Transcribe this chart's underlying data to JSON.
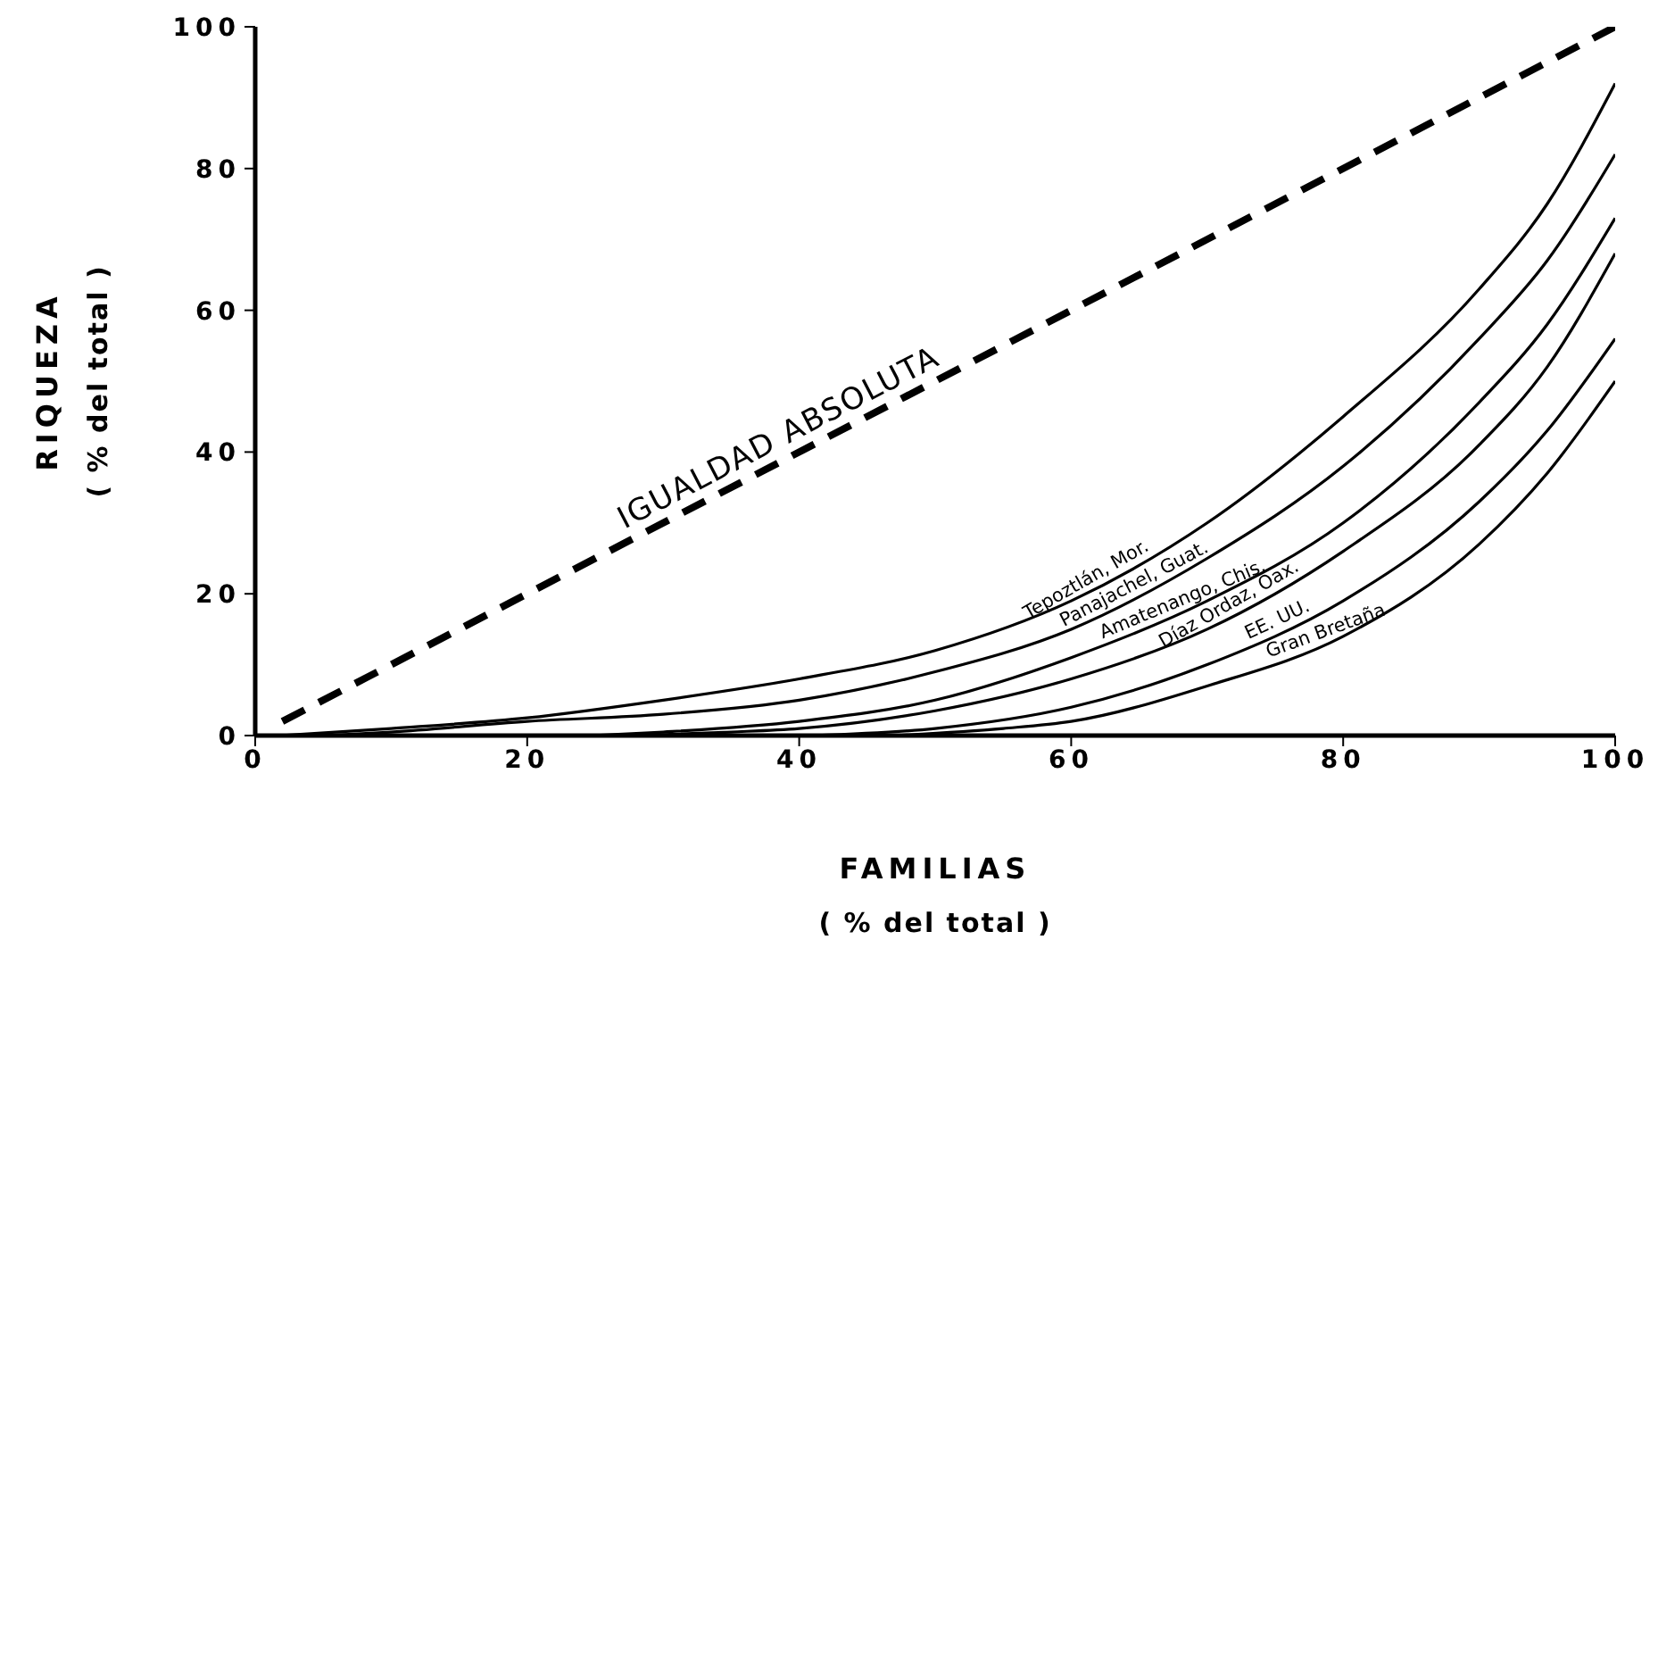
{
  "chart_data": {
    "type": "line",
    "xlabel": "FAMILIAS\n( % del total )",
    "ylabel": "RIQUEZA\n( % del total )",
    "xlim": [
      0,
      100
    ],
    "ylim": [
      0,
      100
    ],
    "xticks": [
      0,
      20,
      40,
      60,
      80,
      100
    ],
    "yticks": [
      0,
      20,
      40,
      60,
      80,
      100
    ],
    "grid": false,
    "legend": false,
    "marker": "none",
    "series": [
      {
        "name": "IGUALDAD ABSOLUTA",
        "color": "#000000",
        "line_style": "dashed",
        "x": [
          2,
          100
        ],
        "values": [
          2,
          100
        ]
      },
      {
        "name": "Tepoztlán, Mor.",
        "color": "#000000",
        "line_style": "solid",
        "x": [
          2,
          10,
          20,
          30,
          40,
          50,
          60,
          70,
          80,
          90,
          95,
          100
        ],
        "values": [
          0,
          1,
          2.5,
          5,
          8,
          12,
          19,
          30,
          45,
          63,
          75,
          92
        ]
      },
      {
        "name": "Panajachel, Guat.",
        "color": "#000000",
        "line_style": "solid",
        "x": [
          5,
          10,
          20,
          30,
          40,
          50,
          60,
          70,
          80,
          90,
          95,
          100
        ],
        "values": [
          0,
          0.5,
          2,
          3,
          5,
          9,
          15,
          25,
          38,
          56,
          67,
          82
        ]
      },
      {
        "name": "Amatenango, Chis.",
        "color": "#000000",
        "line_style": "solid",
        "x": [
          25,
          30,
          40,
          50,
          60,
          70,
          80,
          90,
          95,
          100
        ],
        "values": [
          0,
          0.5,
          2,
          5,
          11,
          19,
          30,
          47,
          58,
          73
        ]
      },
      {
        "name": "Díaz Ordaz, Oax.",
        "color": "#000000",
        "line_style": "solid",
        "x": [
          28,
          35,
          40,
          50,
          60,
          70,
          80,
          90,
          95,
          100
        ],
        "values": [
          0,
          0.5,
          1,
          3.5,
          8,
          15,
          26,
          41,
          52,
          68
        ]
      },
      {
        "name": "EE. UU.",
        "color": "#000000",
        "line_style": "solid",
        "x": [
          41,
          50,
          60,
          70,
          80,
          90,
          95,
          100
        ],
        "values": [
          0,
          1,
          4,
          10,
          19,
          33,
          43,
          56
        ]
      },
      {
        "name": "Gran Bretaña",
        "color": "#000000",
        "line_style": "solid",
        "x": [
          47,
          55,
          60,
          70,
          80,
          90,
          95,
          100
        ],
        "values": [
          0,
          1,
          2,
          7,
          14,
          27,
          37,
          50
        ]
      }
    ]
  }
}
